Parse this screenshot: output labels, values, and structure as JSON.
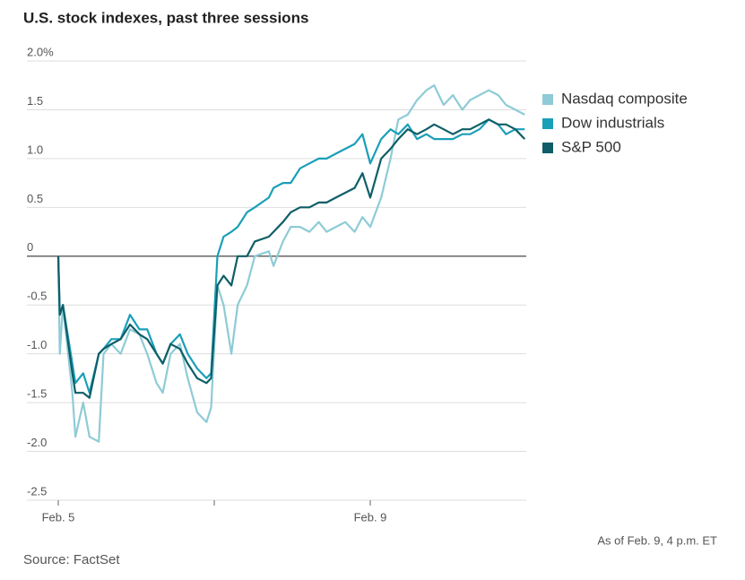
{
  "chart_data": {
    "type": "line",
    "title": "U.S. stock indexes, past three sessions",
    "note": "As of Feb. 9, 4 p.m. ET",
    "source": "Source: FactSet",
    "xlim": [
      0,
      3
    ],
    "xticks": [
      {
        "value": 0,
        "label": "Feb. 5"
      },
      {
        "value": 1,
        "label": null
      },
      {
        "value": 2,
        "label": "Feb. 9"
      }
    ],
    "ylim": [
      -2.5,
      2.0
    ],
    "yticks": [
      {
        "value": 2.0,
        "label": "2.0%"
      },
      1.5,
      {
        "value": 1.0,
        "label": "1.0"
      },
      0.5,
      0,
      -0.5,
      {
        "value": -1.0,
        "label": "-1.0"
      },
      -1.5,
      {
        "value": -2.0,
        "label": "-2.0"
      },
      -2.5
    ],
    "grid": true,
    "legend": "top-right",
    "x": [
      0,
      0.01,
      0.03,
      0.09,
      0.11,
      0.16,
      0.2,
      0.26,
      0.29,
      0.34,
      0.4,
      0.46,
      0.52,
      0.57,
      0.63,
      0.67,
      0.72,
      0.78,
      0.83,
      0.89,
      0.95,
      0.98,
      1.02,
      1.06,
      1.11,
      1.15,
      1.21,
      1.26,
      1.35,
      1.38,
      1.44,
      1.49,
      1.55,
      1.61,
      1.67,
      1.72,
      1.78,
      1.84,
      1.9,
      1.95,
      2.0,
      2.07,
      2.13,
      2.18,
      2.24,
      2.3,
      2.36,
      2.41,
      2.47,
      2.53,
      2.59,
      2.64,
      2.7,
      2.76,
      2.82,
      2.87,
      2.93,
      2.99
    ],
    "series": [
      {
        "name": "Nasdaq composite",
        "color": "#8ecbd6",
        "values": [
          0,
          -1.0,
          -0.5,
          -1.4,
          -1.85,
          -1.5,
          -1.85,
          -1.9,
          -1.0,
          -0.9,
          -1.0,
          -0.75,
          -0.8,
          -1.0,
          -1.3,
          -1.4,
          -1.0,
          -0.9,
          -1.25,
          -1.6,
          -1.7,
          -1.55,
          -0.3,
          -0.5,
          -1.0,
          -0.5,
          -0.3,
          0,
          0.05,
          -0.1,
          0.15,
          0.3,
          0.3,
          0.25,
          0.35,
          0.25,
          0.3,
          0.35,
          0.25,
          0.4,
          0.3,
          0.6,
          1.0,
          1.4,
          1.45,
          1.6,
          1.7,
          1.75,
          1.55,
          1.65,
          1.5,
          1.6,
          1.65,
          1.7,
          1.65,
          1.55,
          1.5,
          1.45
        ]
      },
      {
        "name": "Dow industrials",
        "color": "#1a9fb8",
        "values": [
          0,
          -0.6,
          -0.5,
          -1.1,
          -1.3,
          -1.2,
          -1.4,
          -1.0,
          -0.95,
          -0.85,
          -0.85,
          -0.6,
          -0.75,
          -0.75,
          -1.0,
          -1.1,
          -0.9,
          -0.8,
          -1.0,
          -1.15,
          -1.25,
          -1.2,
          0.0,
          0.2,
          0.25,
          0.3,
          0.45,
          0.5,
          0.6,
          0.7,
          0.75,
          0.75,
          0.9,
          0.95,
          1.0,
          1.0,
          1.05,
          1.1,
          1.15,
          1.25,
          0.95,
          1.2,
          1.3,
          1.25,
          1.35,
          1.2,
          1.25,
          1.2,
          1.2,
          1.2,
          1.25,
          1.25,
          1.3,
          1.4,
          1.35,
          1.25,
          1.3,
          1.3
        ]
      },
      {
        "name": "S&P 500",
        "color": "#0e5e67",
        "values": [
          0,
          -0.6,
          -0.5,
          -1.2,
          -1.4,
          -1.4,
          -1.45,
          -1.0,
          -0.95,
          -0.9,
          -0.85,
          -0.7,
          -0.8,
          -0.85,
          -1.0,
          -1.1,
          -0.9,
          -0.95,
          -1.1,
          -1.25,
          -1.3,
          -1.25,
          -0.3,
          -0.2,
          -0.3,
          0.0,
          0.0,
          0.15,
          0.2,
          0.25,
          0.35,
          0.45,
          0.5,
          0.5,
          0.55,
          0.55,
          0.6,
          0.65,
          0.7,
          0.85,
          0.6,
          1.0,
          1.1,
          1.2,
          1.3,
          1.25,
          1.3,
          1.35,
          1.3,
          1.25,
          1.3,
          1.3,
          1.35,
          1.4,
          1.35,
          1.35,
          1.3,
          1.2
        ]
      }
    ]
  }
}
